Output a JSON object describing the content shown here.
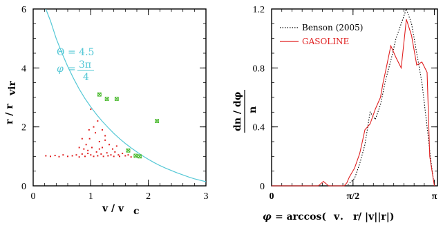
{
  "chart_data": [
    {
      "type": "scatter",
      "xlim": [
        0,
        3
      ],
      "ylim": [
        0,
        6
      ],
      "x_ticks": [
        0,
        1,
        2,
        3
      ],
      "y_ticks": [
        0,
        2,
        4,
        6
      ],
      "x_tick_labels": [
        "0",
        "1",
        "2",
        "3"
      ],
      "y_tick_labels": [
        "0",
        "2",
        "4",
        "6"
      ],
      "xlabel": "v / v",
      "xlabel_sub": "c",
      "ylabel": "r / r",
      "ylabel_sub": "vir",
      "annotation": {
        "theta_symbol": "Θ",
        "theta_text": "= 4.5",
        "phi_symbol": "φ",
        "phi_eq": "=",
        "phi_num": "3π",
        "phi_den": "4"
      },
      "curve": {
        "color": "#55c8d6",
        "points": [
          [
            0.22,
            6.0
          ],
          [
            0.3,
            5.6
          ],
          [
            0.4,
            5.0
          ],
          [
            0.5,
            4.5
          ],
          [
            0.6,
            4.05
          ],
          [
            0.7,
            3.65
          ],
          [
            0.8,
            3.28
          ],
          [
            0.9,
            2.96
          ],
          [
            1.0,
            2.68
          ],
          [
            1.1,
            2.42
          ],
          [
            1.2,
            2.19
          ],
          [
            1.3,
            1.98
          ],
          [
            1.4,
            1.78
          ],
          [
            1.5,
            1.6
          ],
          [
            1.6,
            1.44
          ],
          [
            1.7,
            1.29
          ],
          [
            1.8,
            1.15
          ],
          [
            1.9,
            1.02
          ],
          [
            2.0,
            0.9
          ],
          [
            2.1,
            0.79
          ],
          [
            2.2,
            0.69
          ],
          [
            2.3,
            0.6
          ],
          [
            2.4,
            0.52
          ],
          [
            2.5,
            0.44
          ],
          [
            2.6,
            0.37
          ],
          [
            2.7,
            0.3
          ],
          [
            2.8,
            0.24
          ],
          [
            2.9,
            0.19
          ],
          [
            3.0,
            0.14
          ]
        ]
      },
      "series": [
        {
          "color": "#e02020",
          "marker": "dot",
          "points": [
            [
              0.22,
              1.02
            ],
            [
              0.3,
              1.0
            ],
            [
              0.38,
              1.03
            ],
            [
              0.45,
              0.99
            ],
            [
              0.52,
              1.05
            ],
            [
              0.6,
              1.0
            ],
            [
              0.68,
              1.02
            ],
            [
              0.75,
              1.05
            ],
            [
              0.8,
              0.98
            ],
            [
              0.85,
              1.08
            ],
            [
              0.88,
              1.25
            ],
            [
              0.9,
              1.0
            ],
            [
              0.92,
              1.4
            ],
            [
              0.95,
              1.1
            ],
            [
              0.98,
              1.6
            ],
            [
              1.0,
              1.05
            ],
            [
              1.02,
              1.3
            ],
            [
              1.05,
              1.0
            ],
            [
              1.08,
              1.8
            ],
            [
              1.1,
              1.15
            ],
            [
              1.12,
              1.02
            ],
            [
              1.15,
              1.5
            ],
            [
              1.18,
              1.08
            ],
            [
              1.2,
              1.3
            ],
            [
              1.22,
              1.0
            ],
            [
              1.25,
              1.7
            ],
            [
              1.28,
              1.12
            ],
            [
              1.3,
              1.02
            ],
            [
              1.32,
              1.4
            ],
            [
              1.35,
              1.05
            ],
            [
              1.38,
              1.25
            ],
            [
              1.4,
              1.0
            ],
            [
              1.42,
              1.15
            ],
            [
              1.45,
              1.35
            ],
            [
              1.48,
              1.05
            ],
            [
              1.5,
              1.0
            ],
            [
              1.55,
              1.1
            ],
            [
              1.6,
              1.02
            ],
            [
              1.65,
              1.05
            ],
            [
              1.7,
              0.98
            ],
            [
              1.0,
              2.6
            ],
            [
              1.05,
              2.0
            ],
            [
              0.97,
              1.9
            ],
            [
              1.12,
              2.2
            ],
            [
              1.2,
              1.9
            ],
            [
              0.85,
              1.6
            ],
            [
              0.8,
              1.3
            ],
            [
              1.25,
              1.55
            ],
            [
              0.95,
              1.2
            ],
            [
              1.15,
              1.25
            ]
          ]
        },
        {
          "color": "#46b82a",
          "marker": "x",
          "points": [
            [
              1.15,
              3.1
            ],
            [
              1.28,
              2.95
            ],
            [
              1.45,
              2.95
            ],
            [
              1.65,
              1.2
            ],
            [
              1.78,
              1.02
            ],
            [
              1.85,
              1.0
            ],
            [
              2.15,
              2.2
            ]
          ]
        }
      ]
    },
    {
      "type": "line",
      "xlim": [
        0,
        3.2
      ],
      "ylim": [
        0,
        1.2
      ],
      "x_tick_labels": [
        "0",
        "π/2",
        "π"
      ],
      "y_tick_labels": [
        "0",
        "0.4",
        "0.8",
        "1.2"
      ],
      "y_ticks": [
        0,
        0.4,
        0.8,
        1.2
      ],
      "xlabel_phi": "φ",
      "xlabel_rest": "= arccos(",
      "xlabel_v": "v",
      "xlabel_dot": " . ",
      "xlabel_r": "r",
      "xlabel_end": " / |v||r|)",
      "ylabel_num": "dn / dφ",
      "ylabel_den": "n",
      "legend": [
        {
          "name": "Benson (2005)",
          "color": "#000000",
          "style": "dotted"
        },
        {
          "name": "GASOLINE",
          "color": "#e02020",
          "style": "solid"
        }
      ],
      "series": [
        {
          "name": "Benson (2005)",
          "color": "#000000",
          "style": "dotted",
          "x": [
            0.0,
            1.2,
            1.45,
            1.6,
            1.7,
            1.8,
            1.9,
            2.0,
            2.1,
            2.2,
            2.3,
            2.4,
            2.5,
            2.6,
            2.7,
            2.8,
            2.9,
            3.0,
            3.08,
            3.14
          ],
          "y": [
            0.0,
            0.0,
            0.0,
            0.05,
            0.15,
            0.28,
            0.5,
            0.45,
            0.55,
            0.72,
            0.85,
            1.0,
            1.1,
            1.2,
            1.1,
            0.9,
            0.7,
            0.4,
            0.15,
            0.0
          ]
        },
        {
          "name": "GASOLINE",
          "color": "#e02020",
          "style": "solid",
          "x": [
            0.0,
            0.9,
            1.0,
            1.1,
            1.2,
            1.3,
            1.4,
            1.45,
            1.5,
            1.6,
            1.7,
            1.75,
            1.8,
            1.9,
            2.0,
            2.1,
            2.15,
            2.2,
            2.3,
            2.4,
            2.5,
            2.6,
            2.7,
            2.8,
            2.9,
            3.0,
            3.05,
            3.14
          ],
          "y": [
            0.0,
            0.0,
            0.03,
            0.0,
            0.0,
            0.0,
            0.0,
            0.02,
            0.06,
            0.12,
            0.22,
            0.3,
            0.38,
            0.42,
            0.52,
            0.6,
            0.7,
            0.78,
            0.95,
            0.87,
            0.8,
            1.13,
            1.02,
            0.82,
            0.84,
            0.77,
            0.2,
            0.0
          ]
        }
      ]
    }
  ]
}
